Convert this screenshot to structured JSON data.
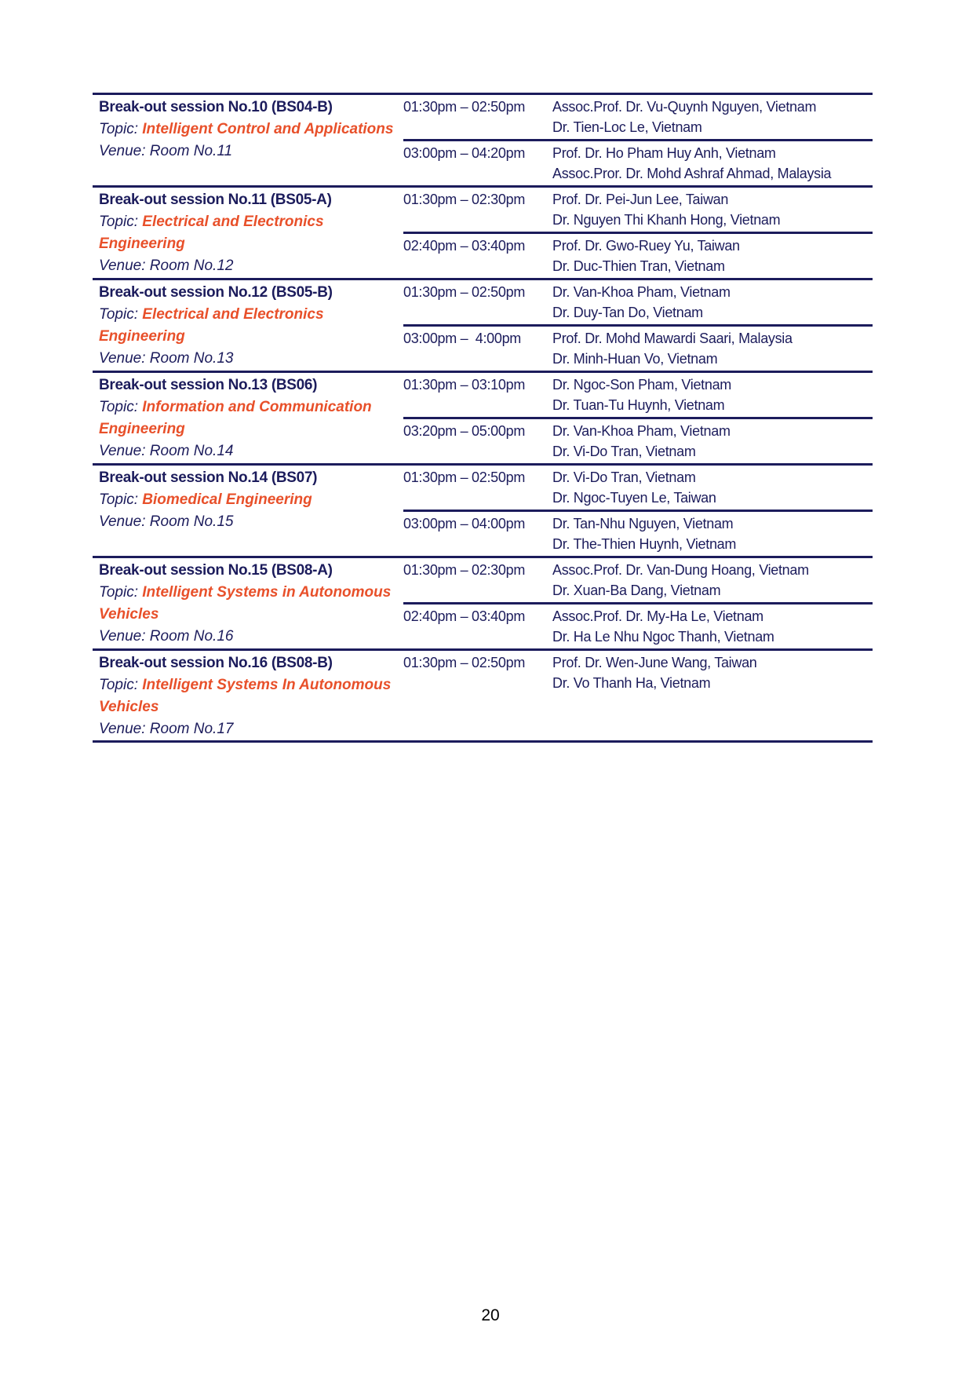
{
  "colors": {
    "text": "#1c1c5c",
    "topic": "#e8502a"
  },
  "topic_label": "Topic: ",
  "sessions": [
    {
      "title": "Break-out session No.10 (BS04-B)",
      "topic": "Intelligent Control and Applications",
      "venue": "Venue: Room No.11",
      "slots": [
        {
          "time": "01:30pm – 02:50pm",
          "speakers": [
            "Assoc.Prof. Dr. Vu-Quynh Nguyen, Vietnam",
            "Dr. Tien-Loc Le, Vietnam"
          ]
        },
        {
          "time": "03:00pm – 04:20pm",
          "speakers": [
            "Prof. Dr. Ho Pham Huy Anh, Vietnam",
            "Assoc.Pror. Dr. Mohd Ashraf Ahmad, Malaysia"
          ]
        }
      ]
    },
    {
      "title": "Break-out session No.11 (BS05-A)",
      "topic": "Electrical and Electronics Engineering",
      "venue": "Venue: Room No.12",
      "slots": [
        {
          "time": "01:30pm – 02:30pm",
          "speakers": [
            "Prof. Dr. Pei-Jun Lee, Taiwan",
            "Dr. Nguyen Thi Khanh Hong, Vietnam"
          ]
        },
        {
          "time": "02:40pm – 03:40pm",
          "speakers": [
            "Prof. Dr. Gwo-Ruey Yu, Taiwan",
            "Dr. Duc-Thien Tran, Vietnam"
          ]
        }
      ]
    },
    {
      "title": "Break-out session No.12 (BS05-B)",
      "topic": "Electrical and Electronics Engineering",
      "venue": "Venue: Room No.13",
      "slots": [
        {
          "time": "01:30pm – 02:50pm",
          "speakers": [
            "Dr. Van-Khoa Pham, Vietnam",
            "Dr. Duy-Tan Do, Vietnam"
          ]
        },
        {
          "time": "03:00pm –  4:00pm",
          "speakers": [
            "Prof. Dr. Mohd Mawardi Saari, Malaysia",
            "Dr. Minh-Huan Vo, Vietnam"
          ]
        }
      ]
    },
    {
      "title": "Break-out session No.13 (BS06)",
      "topic": "Information and Communication Engineering",
      "venue": "Venue: Room No.14",
      "slots": [
        {
          "time": "01:30pm – 03:10pm",
          "speakers": [
            "Dr. Ngoc-Son Pham, Vietnam",
            "Dr. Tuan-Tu Huynh, Vietnam"
          ]
        },
        {
          "time": "03:20pm – 05:00pm",
          "speakers": [
            "Dr. Van-Khoa Pham, Vietnam",
            "Dr. Vi-Do Tran, Vietnam"
          ]
        }
      ]
    },
    {
      "title": "Break-out session No.14 (BS07)",
      "topic": "Biomedical Engineering",
      "venue": "Venue: Room No.15",
      "slots": [
        {
          "time": "01:30pm – 02:50pm",
          "speakers": [
            "Dr. Vi-Do Tran, Vietnam",
            "Dr. Ngoc-Tuyen Le, Taiwan"
          ]
        },
        {
          "time": "03:00pm – 04:00pm",
          "speakers": [
            "Dr. Tan-Nhu Nguyen, Vietnam",
            "Dr. The-Thien Huynh, Vietnam"
          ]
        }
      ]
    },
    {
      "title": "Break-out session No.15 (BS08-A)",
      "topic": "Intelligent Systems in Autonomous Vehicles",
      "venue": "Venue: Room No.16",
      "slots": [
        {
          "time": "01:30pm – 02:30pm",
          "speakers": [
            "Assoc.Prof. Dr. Van-Dung Hoang, Vietnam",
            "Dr. Xuan-Ba Dang, Vietnam"
          ]
        },
        {
          "time": "02:40pm – 03:40pm",
          "speakers": [
            "Assoc.Prof. Dr. My-Ha Le, Vietnam",
            "Dr. Ha Le Nhu Ngoc Thanh, Vietnam"
          ]
        }
      ]
    },
    {
      "title": "Break-out session No.16 (BS08-B)",
      "topic": "Intelligent Systems In Autonomous Vehicles",
      "venue": "Venue: Room No.17",
      "slots": [
        {
          "time": "01:30pm – 02:50pm",
          "speakers": [
            "Prof. Dr. Wen-June Wang, Taiwan",
            "Dr. Vo Thanh Ha, Vietnam"
          ]
        }
      ]
    }
  ],
  "page_number": "20"
}
